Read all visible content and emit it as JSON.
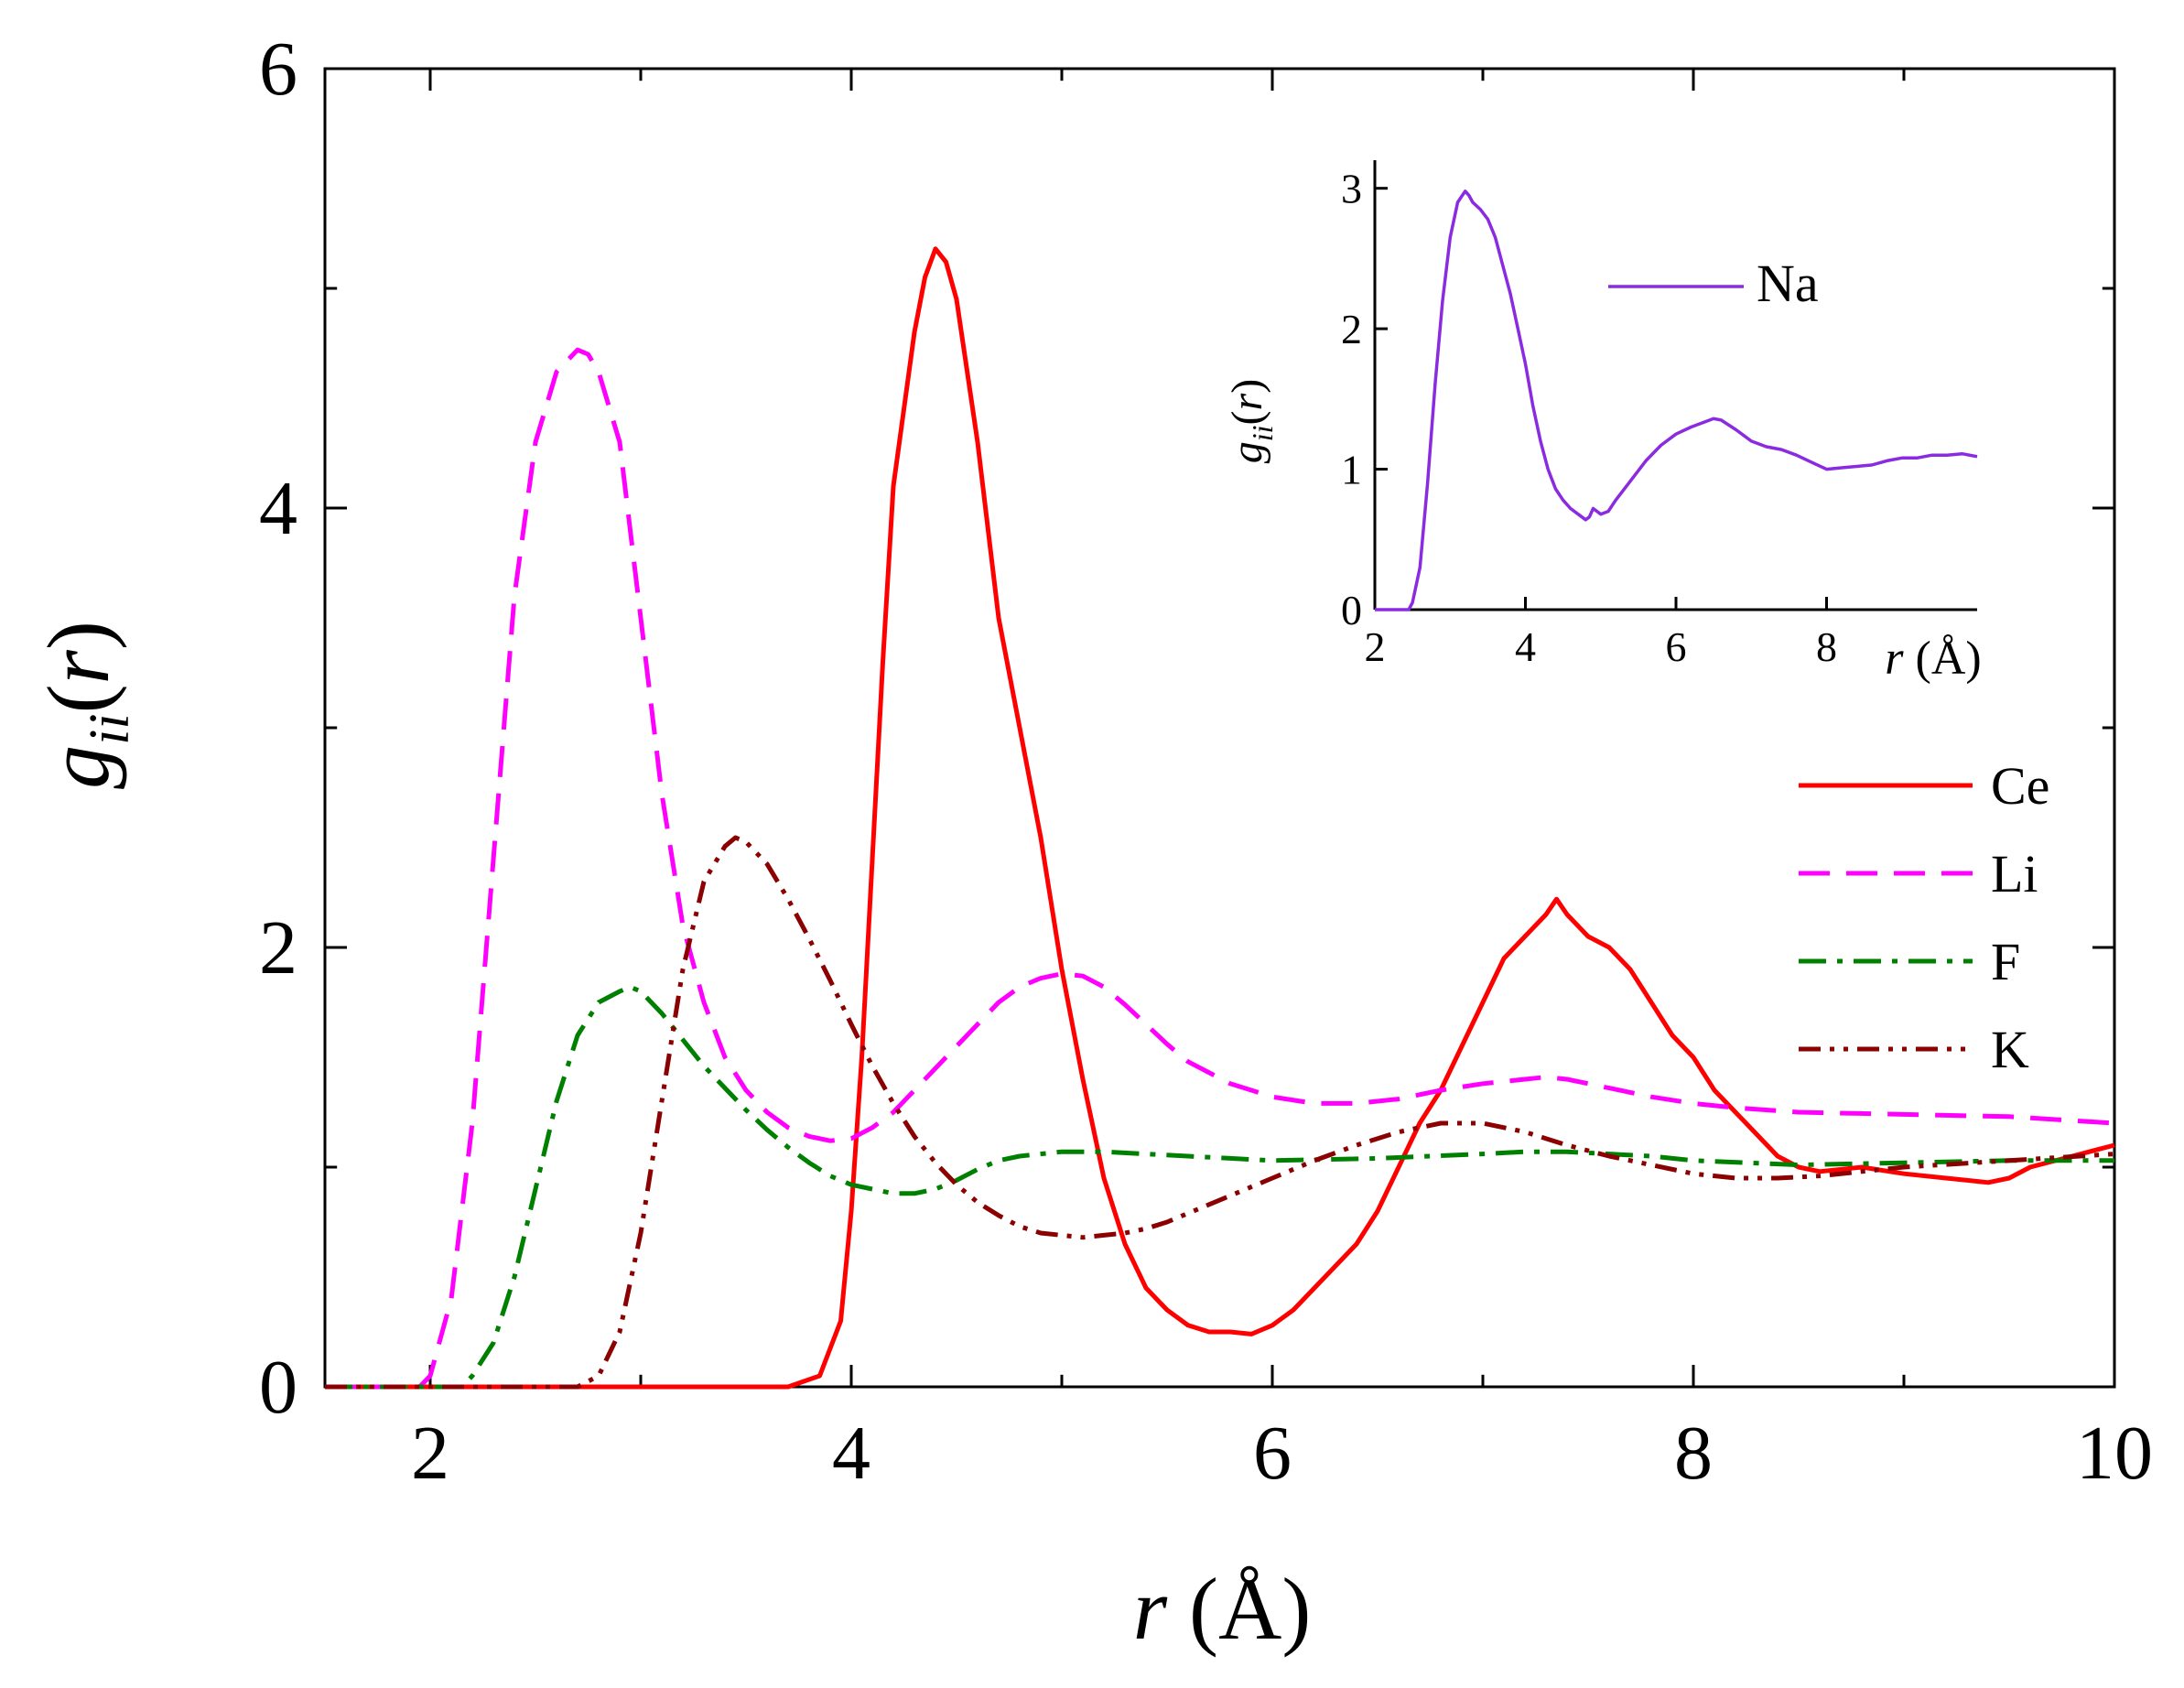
{
  "chart_data": [
    {
      "type": "line",
      "xlabel": "r (Å)",
      "ylabel": "g_ii(r)",
      "xlim": [
        1.5,
        10
      ],
      "ylim": [
        0,
        6
      ],
      "xticks": [
        2,
        4,
        6,
        8,
        10
      ],
      "yticks": [
        0,
        2,
        4,
        6
      ],
      "legend_position": "right",
      "series": [
        {
          "name": "Ce",
          "color": "#ff0000",
          "dash": "solid",
          "x": [
            1.5,
            3.7,
            3.85,
            3.95,
            4.0,
            4.05,
            4.1,
            4.15,
            4.2,
            4.3,
            4.35,
            4.4,
            4.45,
            4.5,
            4.6,
            4.7,
            4.8,
            4.9,
            5.0,
            5.1,
            5.2,
            5.3,
            5.4,
            5.5,
            5.6,
            5.7,
            5.8,
            5.9,
            6.0,
            6.1,
            6.2,
            6.3,
            6.4,
            6.5,
            6.6,
            6.7,
            6.8,
            6.9,
            7.0,
            7.1,
            7.2,
            7.3,
            7.35,
            7.4,
            7.5,
            7.6,
            7.7,
            7.8,
            7.9,
            8.0,
            8.1,
            8.2,
            8.3,
            8.4,
            8.5,
            8.6,
            8.8,
            9.0,
            9.2,
            9.4,
            9.5,
            9.6,
            9.8,
            10.0
          ],
          "y": [
            0,
            0,
            0.05,
            0.3,
            0.8,
            1.5,
            2.4,
            3.3,
            4.1,
            4.8,
            5.05,
            5.18,
            5.12,
            4.95,
            4.3,
            3.5,
            3.0,
            2.5,
            1.9,
            1.4,
            0.95,
            0.65,
            0.45,
            0.35,
            0.28,
            0.25,
            0.25,
            0.24,
            0.28,
            0.35,
            0.45,
            0.55,
            0.65,
            0.8,
            1.0,
            1.2,
            1.35,
            1.55,
            1.75,
            1.95,
            2.05,
            2.15,
            2.22,
            2.15,
            2.05,
            2.0,
            1.9,
            1.75,
            1.6,
            1.5,
            1.35,
            1.25,
            1.15,
            1.05,
            1.0,
            0.98,
            1.0,
            0.97,
            0.95,
            0.93,
            0.95,
            1.0,
            1.05,
            1.1
          ]
        },
        {
          "name": "Li",
          "color": "#ff00ff",
          "dash": "dashed",
          "x": [
            1.5,
            1.95,
            2.0,
            2.1,
            2.2,
            2.3,
            2.4,
            2.5,
            2.6,
            2.7,
            2.75,
            2.8,
            2.9,
            3.0,
            3.1,
            3.2,
            3.3,
            3.4,
            3.5,
            3.6,
            3.7,
            3.8,
            3.9,
            4.0,
            4.1,
            4.2,
            4.3,
            4.4,
            4.5,
            4.6,
            4.7,
            4.8,
            4.9,
            5.0,
            5.1,
            5.2,
            5.3,
            5.4,
            5.5,
            5.6,
            5.8,
            6.0,
            6.2,
            6.4,
            6.6,
            6.8,
            7.0,
            7.2,
            7.3,
            7.4,
            7.6,
            7.8,
            8.0,
            8.2,
            8.5,
            9.0,
            9.5,
            10.0
          ],
          "y": [
            0,
            0,
            0.05,
            0.4,
            1.2,
            2.4,
            3.6,
            4.3,
            4.62,
            4.72,
            4.7,
            4.62,
            4.3,
            3.5,
            2.7,
            2.1,
            1.75,
            1.5,
            1.35,
            1.25,
            1.18,
            1.14,
            1.12,
            1.13,
            1.18,
            1.25,
            1.35,
            1.45,
            1.55,
            1.65,
            1.75,
            1.82,
            1.86,
            1.88,
            1.87,
            1.82,
            1.74,
            1.65,
            1.56,
            1.48,
            1.38,
            1.32,
            1.29,
            1.29,
            1.31,
            1.35,
            1.38,
            1.4,
            1.41,
            1.4,
            1.36,
            1.32,
            1.29,
            1.27,
            1.25,
            1.24,
            1.23,
            1.2
          ]
        },
        {
          "name": "F",
          "color": "#008000",
          "dash": "dashdot",
          "x": [
            1.5,
            2.15,
            2.2,
            2.3,
            2.4,
            2.5,
            2.6,
            2.7,
            2.8,
            2.9,
            2.95,
            3.0,
            3.1,
            3.2,
            3.3,
            3.4,
            3.5,
            3.6,
            3.7,
            3.8,
            3.9,
            4.0,
            4.1,
            4.2,
            4.3,
            4.4,
            4.5,
            4.6,
            4.7,
            4.8,
            4.9,
            5.0,
            5.2,
            5.4,
            5.6,
            5.8,
            6.0,
            6.5,
            7.0,
            7.2,
            7.4,
            7.6,
            7.8,
            8.0,
            8.5,
            9.0,
            9.5,
            10.0
          ],
          "y": [
            0,
            0,
            0.05,
            0.2,
            0.5,
            0.9,
            1.3,
            1.6,
            1.75,
            1.8,
            1.82,
            1.8,
            1.7,
            1.58,
            1.46,
            1.36,
            1.26,
            1.17,
            1.09,
            1.02,
            0.96,
            0.92,
            0.9,
            0.88,
            0.88,
            0.9,
            0.94,
            0.99,
            1.03,
            1.05,
            1.06,
            1.07,
            1.07,
            1.06,
            1.05,
            1.04,
            1.03,
            1.04,
            1.06,
            1.07,
            1.07,
            1.06,
            1.05,
            1.03,
            1.01,
            1.02,
            1.03,
            1.03
          ]
        },
        {
          "name": "K",
          "color": "#8b0000",
          "dash": "dashdotdot",
          "x": [
            1.5,
            2.7,
            2.8,
            2.9,
            3.0,
            3.1,
            3.2,
            3.3,
            3.4,
            3.45,
            3.5,
            3.6,
            3.7,
            3.8,
            3.9,
            4.0,
            4.1,
            4.2,
            4.3,
            4.4,
            4.5,
            4.6,
            4.7,
            4.8,
            4.9,
            5.0,
            5.1,
            5.2,
            5.3,
            5.4,
            5.5,
            5.6,
            5.7,
            5.8,
            5.9,
            6.0,
            6.2,
            6.4,
            6.6,
            6.8,
            7.0,
            7.2,
            7.4,
            7.6,
            7.8,
            8.0,
            8.2,
            8.4,
            8.6,
            8.8,
            9.0,
            9.5,
            10.0
          ],
          "y": [
            0,
            0,
            0.05,
            0.25,
            0.7,
            1.3,
            1.9,
            2.3,
            2.46,
            2.5,
            2.48,
            2.38,
            2.22,
            2.04,
            1.85,
            1.65,
            1.46,
            1.29,
            1.14,
            1.02,
            0.92,
            0.84,
            0.78,
            0.73,
            0.7,
            0.69,
            0.68,
            0.69,
            0.7,
            0.72,
            0.75,
            0.79,
            0.83,
            0.87,
            0.91,
            0.95,
            1.03,
            1.1,
            1.16,
            1.2,
            1.2,
            1.16,
            1.1,
            1.05,
            1.01,
            0.97,
            0.95,
            0.95,
            0.96,
            0.98,
            1.0,
            1.03,
            1.06
          ]
        }
      ]
    },
    {
      "type": "line",
      "xlabel": "r (Å)",
      "ylabel": "g_ii(r)",
      "xlim": [
        2,
        10
      ],
      "ylim": [
        0,
        3.2
      ],
      "xticks": [
        2,
        4,
        6,
        8
      ],
      "yticks": [
        0,
        1,
        2,
        3
      ],
      "legend_position": "top-right",
      "series": [
        {
          "name": "Na",
          "color": "#8a2be2",
          "dash": "solid",
          "x": [
            2.0,
            2.45,
            2.5,
            2.6,
            2.7,
            2.8,
            2.9,
            3.0,
            3.1,
            3.2,
            3.25,
            3.3,
            3.4,
            3.5,
            3.6,
            3.7,
            3.8,
            3.9,
            4.0,
            4.1,
            4.2,
            4.3,
            4.4,
            4.5,
            4.6,
            4.7,
            4.8,
            4.85,
            4.9,
            5.0,
            5.1,
            5.2,
            5.4,
            5.6,
            5.8,
            6.0,
            6.2,
            6.4,
            6.5,
            6.6,
            6.8,
            7.0,
            7.2,
            7.4,
            7.6,
            7.8,
            8.0,
            8.2,
            8.4,
            8.6,
            8.8,
            9.0,
            9.2,
            9.4,
            9.6,
            9.8,
            10.0
          ],
          "y": [
            0,
            0,
            0.05,
            0.3,
            0.9,
            1.6,
            2.2,
            2.65,
            2.9,
            2.98,
            2.95,
            2.9,
            2.85,
            2.78,
            2.65,
            2.45,
            2.25,
            2.0,
            1.75,
            1.45,
            1.2,
            1.0,
            0.86,
            0.78,
            0.72,
            0.68,
            0.64,
            0.66,
            0.72,
            0.68,
            0.7,
            0.78,
            0.92,
            1.06,
            1.17,
            1.25,
            1.3,
            1.34,
            1.36,
            1.35,
            1.28,
            1.2,
            1.16,
            1.14,
            1.1,
            1.05,
            1.0,
            1.01,
            1.02,
            1.03,
            1.06,
            1.08,
            1.08,
            1.1,
            1.1,
            1.11,
            1.09
          ]
        }
      ]
    }
  ]
}
